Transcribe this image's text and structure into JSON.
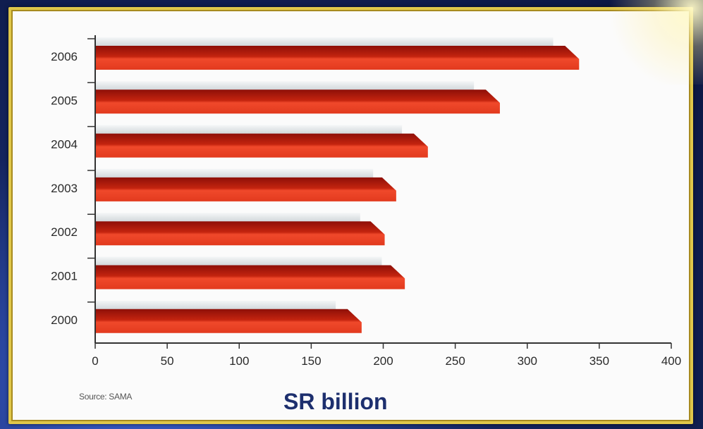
{
  "chart_data": {
    "type": "bar",
    "orientation": "horizontal",
    "categories": [
      "2000",
      "2001",
      "2002",
      "2003",
      "2004",
      "2005",
      "2006"
    ],
    "series": [
      {
        "values": [
          167,
          199,
          184,
          193,
          213,
          263,
          318
        ],
        "color": "#dfe3e6"
      },
      {
        "values": [
          185,
          215,
          201,
          209,
          231,
          281,
          336
        ],
        "color": "#d8321d"
      }
    ],
    "xlim": [
      0,
      400
    ],
    "xticks": [
      "0",
      "50",
      "100",
      "150",
      "200",
      "250",
      "300",
      "350",
      "400"
    ],
    "xlabel": "SR billion",
    "grid": false,
    "source": "Source: SAMA"
  }
}
